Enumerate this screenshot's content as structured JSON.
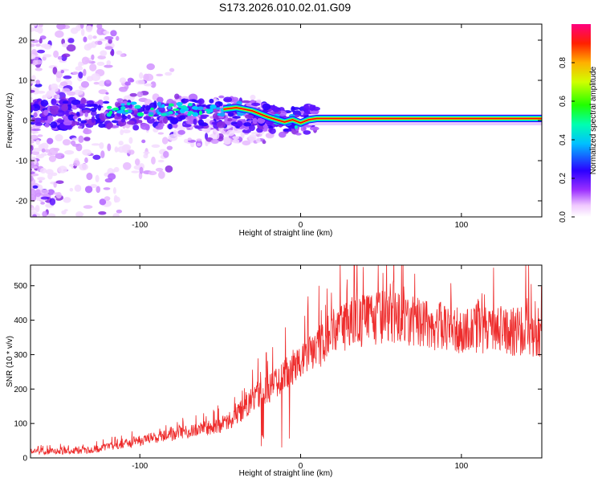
{
  "title": "S173.2026.010.02.01.G09",
  "colors": {
    "snr_line": "#ee2c2c",
    "ridge": "#ee0000",
    "axis": "#000000"
  },
  "chart_data": [
    {
      "type": "heatmap",
      "name": "spectrogram",
      "xlabel": "Height of straight line (km)",
      "ylabel": "Frequency (Hz)",
      "xlim": [
        -168,
        150
      ],
      "ylim": [
        -24,
        24
      ],
      "xticks": [
        -100,
        0,
        100
      ],
      "xtick_labels": [
        "-100",
        "0",
        "100"
      ],
      "yticks": [
        20,
        10,
        0,
        -10,
        -20
      ],
      "ytick_labels": [
        "20",
        "10",
        "0",
        "-10",
        "-20"
      ],
      "colorbar": {
        "label": "Normalized spectral amplitude",
        "range": [
          0,
          1
        ],
        "ticks": [
          0.0,
          0.2,
          0.4,
          0.6,
          0.8
        ],
        "tick_labels": [
          "0.0",
          "0.2",
          "0.4",
          "0.6",
          "0.8"
        ]
      },
      "ridge": {
        "description": "dominant frequency trace",
        "x": [
          -48,
          -40,
          -35,
          -30,
          -25,
          -20,
          -15,
          -10,
          -5,
          0,
          5,
          10,
          150
        ],
        "y": [
          2.8,
          3.2,
          2.8,
          2.4,
          1.6,
          0.8,
          0.2,
          -0.4,
          0.2,
          -0.6,
          0.2,
          0.5,
          0.5
        ]
      }
    },
    {
      "type": "line",
      "name": "snr",
      "xlabel": "Height of straight line (km)",
      "ylabel": "SNR (10 * v/v)",
      "xlim": [
        -168,
        150
      ],
      "ylim": [
        0,
        560
      ],
      "xticks": [
        -100,
        0,
        100
      ],
      "xtick_labels": [
        "-100",
        "0",
        "100"
      ],
      "yticks": [
        0,
        100,
        200,
        300,
        400,
        500
      ],
      "ytick_labels": [
        "0",
        "100",
        "200",
        "300",
        "400",
        "500"
      ],
      "trend": {
        "x": [
          -168,
          -130,
          -110,
          -90,
          -70,
          -50,
          -40,
          -30,
          -20,
          -10,
          0,
          10,
          20,
          30,
          50,
          80,
          100,
          120,
          150
        ],
        "y": [
          18,
          22,
          40,
          60,
          75,
          95,
          120,
          170,
          200,
          240,
          280,
          320,
          360,
          390,
          410,
          385,
          375,
          370,
          365
        ]
      }
    }
  ]
}
